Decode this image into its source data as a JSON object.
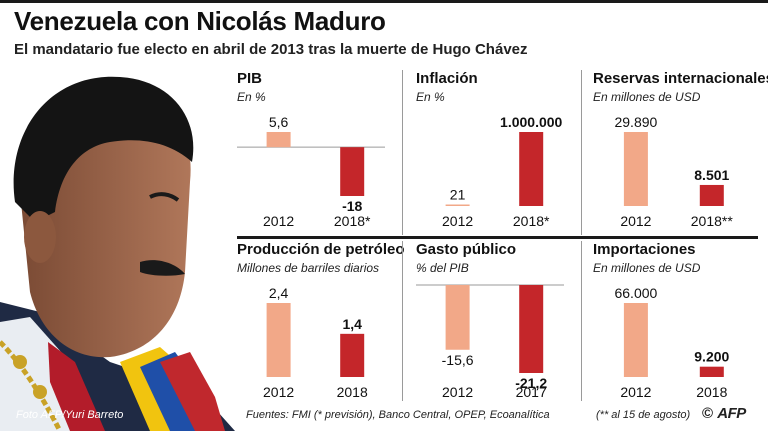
{
  "header": {
    "title": "Venezuela con Nicolás Maduro",
    "subtitle": "El mandatario fue electo en abril de 2013 tras la muerte de Hugo Chávez"
  },
  "colors": {
    "light_bar": "#f2a888",
    "dark_bar": "#c4262a",
    "separator": "#1a1a1a",
    "gridline": "#9a9a9a"
  },
  "footer": {
    "credit": "Foto AFP/Yuri Barreto",
    "sources": "Fuentes: FMI (* previsión), Banco Central, OPEP, Ecoanalítica",
    "note": "(** al 15 de agosto)",
    "copyright": "©",
    "logo": "AFP"
  },
  "chart_data": [
    {
      "type": "bar",
      "title": "PIB",
      "subtitle": "En %",
      "categories": [
        "2012",
        "2018*"
      ],
      "values": [
        5.6,
        -18
      ],
      "value_labels": [
        "5,6",
        "-18"
      ]
    },
    {
      "type": "bar",
      "title": "Inflación",
      "subtitle": "En %",
      "categories": [
        "2012",
        "2018*"
      ],
      "values": [
        21,
        1000000
      ],
      "value_labels": [
        "21",
        "1.000.000"
      ]
    },
    {
      "type": "bar",
      "title": "Reservas internacionales",
      "subtitle": "En millones de USD",
      "categories": [
        "2012",
        "2018**"
      ],
      "values": [
        29890,
        8501
      ],
      "value_labels": [
        "29.890",
        "8.501"
      ]
    },
    {
      "type": "bar",
      "title": "Producción de petróleo",
      "subtitle": "Millones de barriles diarios",
      "categories": [
        "2012",
        "2018"
      ],
      "values": [
        2.4,
        1.4
      ],
      "value_labels": [
        "2,4",
        "1,4"
      ]
    },
    {
      "type": "bar",
      "title": "Gasto público",
      "subtitle": "% del PIB",
      "categories": [
        "2012",
        "2017"
      ],
      "values": [
        -15.6,
        -21.2
      ],
      "value_labels": [
        "-15,6",
        "-21,2"
      ]
    },
    {
      "type": "bar",
      "title": "Importaciones",
      "subtitle": "En millones de USD",
      "categories": [
        "2012",
        "2018"
      ],
      "values": [
        66000,
        9200
      ],
      "value_labels": [
        "66.000",
        "9.200"
      ]
    }
  ]
}
